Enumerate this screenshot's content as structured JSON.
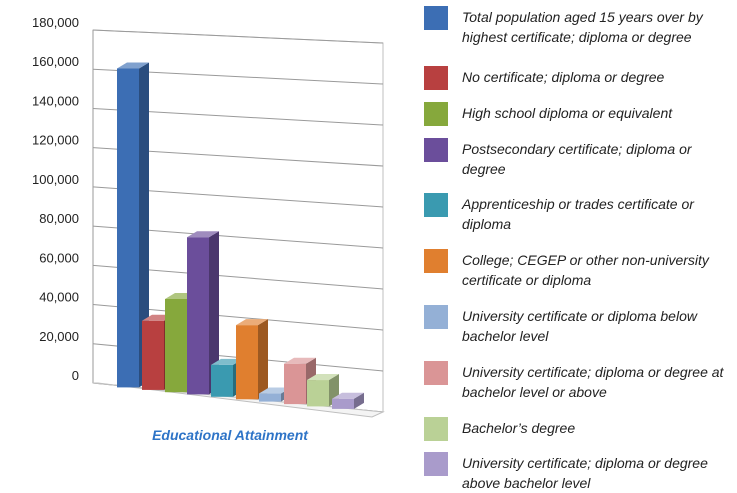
{
  "chart_data": {
    "type": "bar",
    "categories": [
      "Educational Attainment"
    ],
    "series": [
      {
        "name": "Total population aged 15 years over by highest certificate; diploma or degree",
        "values": [
          162000
        ],
        "color": "#3C6EB4"
      },
      {
        "name": "No certificate; diploma or degree",
        "values": [
          35000
        ],
        "color": "#B84040"
      },
      {
        "name": "High school diploma or equivalent",
        "values": [
          47000
        ],
        "color": "#86A83C"
      },
      {
        "name": "Postsecondary certificate; diploma or degree",
        "values": [
          79000
        ],
        "color": "#6B4E9B"
      },
      {
        "name": "Apprenticeship or trades certificate or diploma",
        "values": [
          16000
        ],
        "color": "#3A9AB0"
      },
      {
        "name": "College; CEGEP or other non-university certificate or diploma",
        "values": [
          37000
        ],
        "color": "#E07F2F"
      },
      {
        "name": "University certificate or diploma below bachelor level",
        "values": [
          4000
        ],
        "color": "#94B0D6"
      },
      {
        "name": "University certificate; diploma or degree at bachelor level or above",
        "values": [
          20000
        ],
        "color": "#DA9596"
      },
      {
        "name": "Bachelor's degree",
        "values": [
          13000
        ],
        "color": "#BAD196"
      },
      {
        "name": "University certificate; diploma or degree above bachelor level",
        "values": [
          5000
        ],
        "color": "#A99BCB"
      }
    ],
    "yticks": [
      "0",
      "20,000",
      "40,000",
      "60,000",
      "80,000",
      "100,000",
      "120,000",
      "140,000",
      "160,000",
      "180,000"
    ],
    "ylim": [
      0,
      180000
    ],
    "grid": true,
    "legend": "right",
    "style": "3d-clustered"
  },
  "legend_items": [
    {
      "label": "Total population aged 15 years over by highest certificate; diploma or degree",
      "color": "#3C6EB4"
    },
    {
      "label": "No certificate; diploma or degree",
      "color": "#B84040"
    },
    {
      "label": "High school diploma or equivalent",
      "color": "#86A83C"
    },
    {
      "label": "Postsecondary certificate; diploma or degree",
      "color": "#6B4E9B"
    },
    {
      "label": "Apprenticeship or trades certificate or diploma",
      "color": "#3A9AB0"
    },
    {
      "label": "College; CEGEP or other non-university certificate or diploma",
      "color": "#E07F2F"
    },
    {
      "label": "University certificate or diploma below bachelor level",
      "color": "#94B0D6"
    },
    {
      "label": "University certificate; diploma or degree at bachelor level or above",
      "color": "#DA9596"
    },
    {
      "label": "Bachelor’s degree",
      "color": "#BAD196"
    },
    {
      "label": "University certificate; diploma or degree above bachelor level",
      "color": "#A99BCB"
    }
  ]
}
